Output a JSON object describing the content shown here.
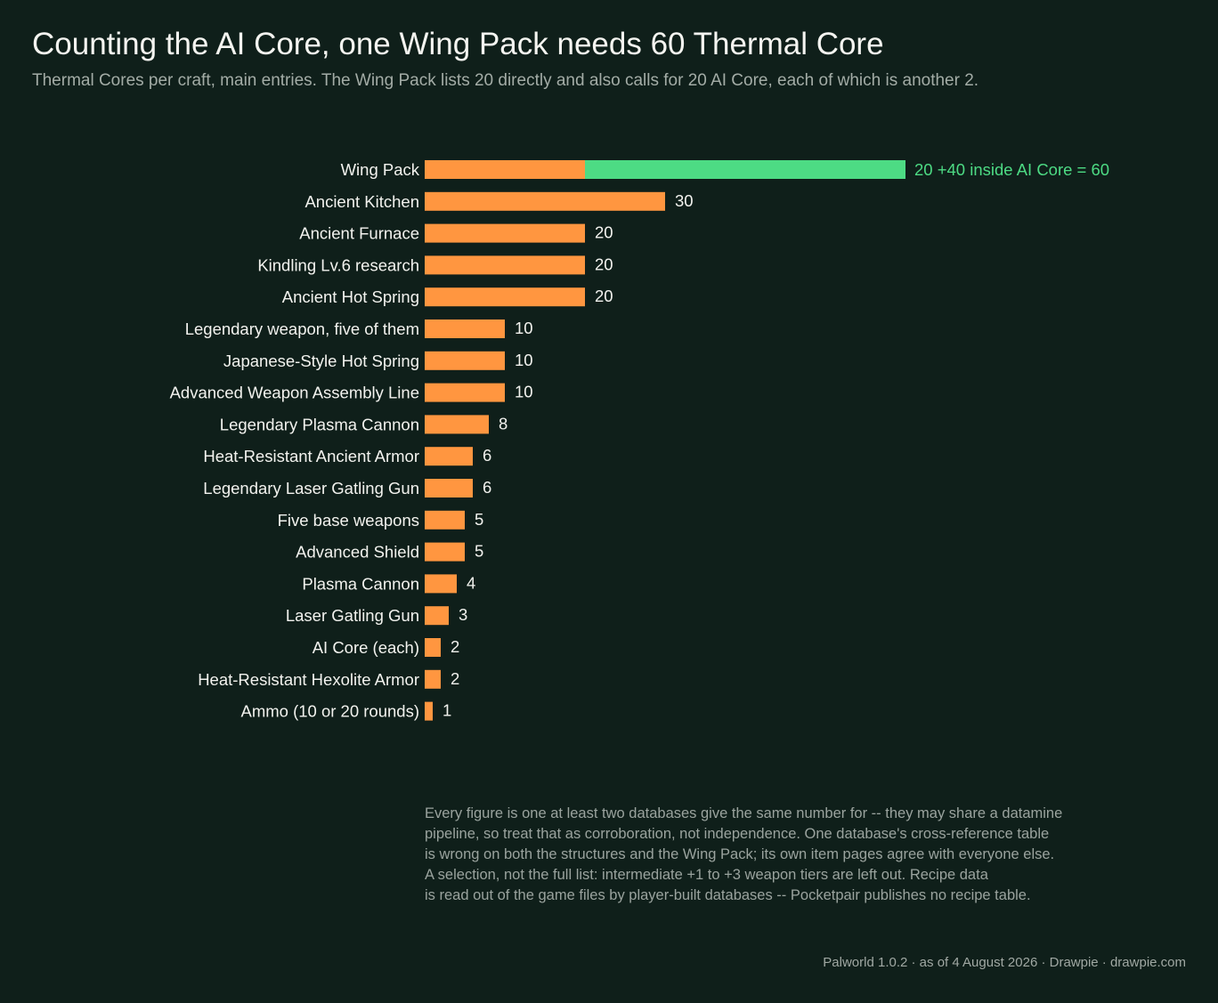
{
  "title": "Counting the AI Core, one Wing Pack needs 60 Thermal Core",
  "subtitle": "Thermal Cores per craft, main entries. The Wing Pack lists 20 directly and also calls for 20 AI Core, each of which is another 2.",
  "colors": {
    "direct": "#ff9640",
    "indirect": "#4ddb84",
    "label": "#f2f2ee",
    "background": "#0f1f1a"
  },
  "chart_data": {
    "type": "bar",
    "orientation": "horizontal",
    "stacked": true,
    "grid": false,
    "legend": "none",
    "categories": [
      "Wing Pack",
      "Ancient Kitchen",
      "Ancient Furnace",
      "Kindling Lv.6 research",
      "Ancient Hot Spring",
      "Legendary weapon, five of them",
      "Japanese-Style Hot Spring",
      "Advanced Weapon Assembly Line",
      "Legendary Plasma Cannon",
      "Heat-Resistant Ancient Armor",
      "Legendary Laser Gatling Gun",
      "Five base weapons",
      "Advanced Shield",
      "Plasma Cannon",
      "Laser Gatling Gun",
      "AI Core (each)",
      "Heat-Resistant Hexolite Armor",
      "Ammo (10 or 20 rounds)"
    ],
    "series": [
      {
        "values": [
          20,
          30,
          20,
          20,
          20,
          10,
          10,
          10,
          8,
          6,
          6,
          5,
          5,
          4,
          3,
          2,
          2,
          1
        ]
      },
      {
        "values": [
          40,
          0,
          0,
          0,
          0,
          0,
          0,
          0,
          0,
          0,
          0,
          0,
          0,
          0,
          0,
          0,
          0,
          0
        ]
      }
    ],
    "value_labels": [
      "20",
      "30",
      "20",
      "20",
      "20",
      "10",
      "10",
      "10",
      "8",
      "6",
      "6",
      "5",
      "5",
      "4",
      "3",
      "2",
      "2",
      "1"
    ],
    "annotation": {
      "category": "Wing Pack",
      "parts": [
        "20",
        "+40 inside AI Core",
        "=",
        "60"
      ]
    },
    "xlim": [
      0,
      60
    ]
  },
  "notes": [
    "Every figure is one at least two databases give the same number for -- they may share a datamine",
    "pipeline, so treat that as corroboration, not independence. One database's cross-reference table",
    "is wrong on both the structures and the Wing Pack; its own item pages agree with everyone else.",
    "A selection, not the full list: intermediate +1 to +3 weapon tiers are left out. Recipe data",
    "is read out of the game files by player-built databases -- Pocketpair publishes no recipe table."
  ],
  "footer": "Palworld 1.0.2 · as of 4 August 2026  ·  Drawpie · drawpie.com"
}
